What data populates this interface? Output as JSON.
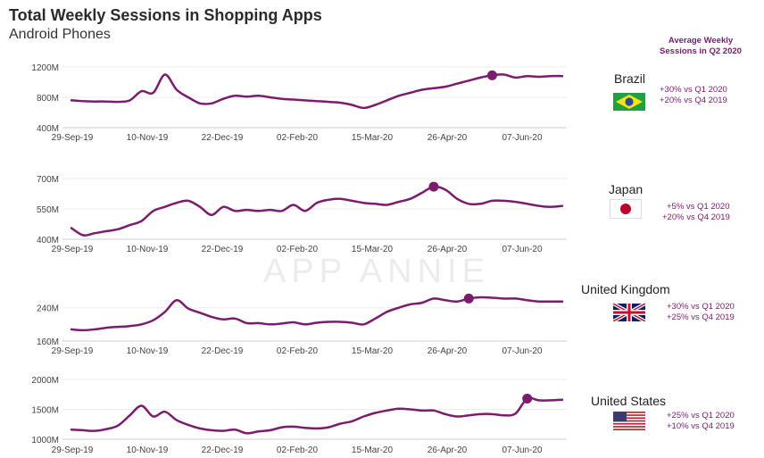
{
  "header": {
    "title": "Total Weekly Sessions in Shopping Apps",
    "subtitle": "Android Phones",
    "avg_line1": "Average Weekly",
    "avg_line2": "Sessions in Q2 2020"
  },
  "watermark": "APP ANNIE",
  "colors": {
    "line": "#7b1c6e",
    "axis": "#cccccc",
    "grid": "#eeeeee",
    "stat_text": "#7b1c6e"
  },
  "chart_data": [
    {
      "type": "line",
      "country": "Brazil",
      "flag": "brazil-flag",
      "stat1": "+30% vs Q1 2020",
      "stat2": "+20% vs Q4 2019",
      "x_tick_labels": [
        "29-Sep-19",
        "10-Nov-19",
        "22-Dec-19",
        "02-Feb-20",
        "15-Mar-20",
        "26-Apr-20",
        "07-Jun-20"
      ],
      "y_ticks": [
        {
          "value": 400,
          "label": "400M"
        },
        {
          "value": 800,
          "label": "800M"
        },
        {
          "value": 1200,
          "label": "1200M"
        }
      ],
      "ylim": [
        400,
        1200
      ],
      "values": [
        760,
        750,
        745,
        745,
        740,
        760,
        880,
        860,
        1100,
        900,
        800,
        720,
        720,
        780,
        820,
        810,
        820,
        800,
        780,
        770,
        760,
        750,
        740,
        730,
        700,
        660,
        700,
        760,
        820,
        860,
        900,
        920,
        940,
        980,
        1020,
        1060,
        1090,
        1100,
        1060,
        1080,
        1070,
        1080,
        1080
      ],
      "highlight_index": 36
    },
    {
      "type": "line",
      "country": "Japan",
      "flag": "japan-flag",
      "stat1": "+5% vs Q1 2020",
      "stat2": "+20% vs Q4 2019",
      "x_tick_labels": [
        "29-Sep-19",
        "10-Nov-19",
        "22-Dec-19",
        "02-Feb-20",
        "15-Mar-20",
        "26-Apr-20",
        "07-Jun-20"
      ],
      "y_ticks": [
        {
          "value": 400,
          "label": "400M"
        },
        {
          "value": 550,
          "label": "550M"
        },
        {
          "value": 700,
          "label": "700M"
        }
      ],
      "ylim": [
        400,
        700
      ],
      "values": [
        455,
        420,
        430,
        440,
        450,
        470,
        490,
        540,
        560,
        580,
        590,
        560,
        520,
        560,
        540,
        545,
        540,
        545,
        540,
        570,
        540,
        580,
        595,
        600,
        590,
        580,
        575,
        570,
        585,
        600,
        630,
        660,
        645,
        600,
        575,
        575,
        590,
        590,
        585,
        575,
        565,
        560,
        565
      ],
      "highlight_index": 31
    },
    {
      "type": "line",
      "country": "United Kingdom",
      "flag": "uk-flag",
      "stat1": "+30% vs Q1 2020",
      "stat2": "+25% vs Q4 2019",
      "x_tick_labels": [
        "29-Sep-19",
        "10-Nov-19",
        "22-Dec-19",
        "02-Feb-20",
        "15-Mar-20",
        "26-Apr-20",
        "07-Jun-20"
      ],
      "y_ticks": [
        {
          "value": 160,
          "label": "160M"
        },
        {
          "value": 240,
          "label": "240M"
        }
      ],
      "ylim": [
        160,
        280
      ],
      "values": [
        188,
        186,
        188,
        192,
        194,
        196,
        200,
        210,
        230,
        258,
        238,
        228,
        218,
        212,
        214,
        203,
        203,
        200,
        202,
        205,
        200,
        204,
        206,
        206,
        204,
        200,
        214,
        230,
        240,
        248,
        252,
        262,
        258,
        255,
        262,
        265,
        264,
        262,
        262,
        258,
        255,
        255,
        255
      ],
      "highlight_index": 34
    },
    {
      "type": "line",
      "country": "United States",
      "flag": "us-flag",
      "stat1": "+25% vs Q1 2020",
      "stat2": "+10% vs Q4 2019",
      "x_tick_labels": [
        "29-Sep-19",
        "10-Nov-19",
        "22-Dec-19",
        "02-Feb-20",
        "15-Mar-20",
        "26-Apr-20",
        "07-Jun-20"
      ],
      "y_ticks": [
        {
          "value": 1000,
          "label": "1000M"
        },
        {
          "value": 1500,
          "label": "1500M"
        },
        {
          "value": 2000,
          "label": "2000M"
        }
      ],
      "ylim": [
        1000,
        2000
      ],
      "values": [
        1160,
        1150,
        1140,
        1170,
        1230,
        1400,
        1560,
        1380,
        1460,
        1320,
        1240,
        1180,
        1150,
        1140,
        1160,
        1100,
        1130,
        1150,
        1200,
        1210,
        1190,
        1180,
        1200,
        1260,
        1300,
        1380,
        1440,
        1480,
        1510,
        1500,
        1480,
        1480,
        1420,
        1380,
        1400,
        1420,
        1420,
        1400,
        1430,
        1680,
        1650,
        1650,
        1660
      ],
      "highlight_index": 39
    }
  ]
}
